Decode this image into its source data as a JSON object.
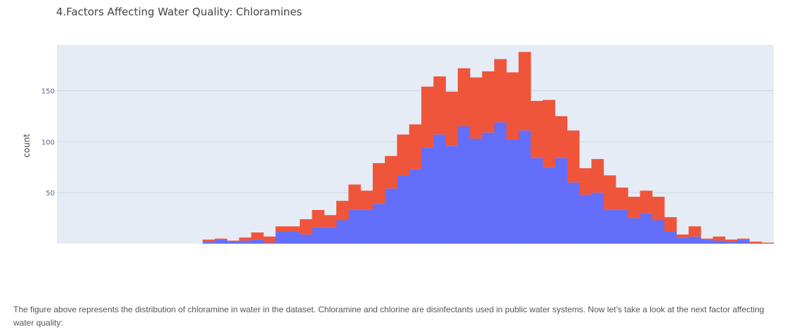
{
  "chart_data": {
    "type": "bar",
    "mode": "stacked-histogram",
    "title": "4.Factors Affecting Water Quality: Chloramines",
    "xlabel": "",
    "ylabel": "count",
    "ylim": [
      0,
      195
    ],
    "yticks": [
      "50",
      "100",
      "150"
    ],
    "grid": true,
    "legend": "none",
    "series": [
      {
        "color": "#636efa",
        "values": [
          0,
          0,
          0,
          0,
          0,
          0,
          0,
          0,
          0,
          0,
          0,
          0,
          2,
          4,
          2,
          3,
          4,
          1,
          12,
          12,
          9,
          16,
          16,
          23,
          33,
          33,
          39,
          54,
          67,
          73,
          94,
          107,
          96,
          115,
          103,
          109,
          119,
          102,
          111,
          84,
          75,
          84,
          60,
          48,
          50,
          33,
          33,
          25,
          30,
          23,
          12,
          6,
          7,
          4,
          3,
          2,
          4,
          0,
          0
        ]
      },
      {
        "color": "#ef553b",
        "values": [
          0,
          0,
          0,
          0,
          0,
          0,
          0,
          0,
          0,
          0,
          0,
          0,
          2,
          1,
          1,
          3,
          7,
          6,
          5,
          5,
          15,
          17,
          12,
          19,
          25,
          19,
          40,
          32,
          40,
          44,
          60,
          57,
          53,
          57,
          60,
          60,
          62,
          66,
          77,
          56,
          66,
          41,
          51,
          26,
          33,
          34,
          22,
          21,
          22,
          23,
          14,
          3,
          10,
          1,
          4,
          2,
          1,
          2,
          1
        ]
      }
    ]
  },
  "caption": "The figure above represents the distribution of chloramine in water in the dataset. Chloramine and chlorine are disinfectants used in public water systems. Now let’s take a look at the next factor affecting water quality:",
  "colors": {
    "plot_background": "#e5ecf6",
    "gridline": "#cfd7e3"
  }
}
